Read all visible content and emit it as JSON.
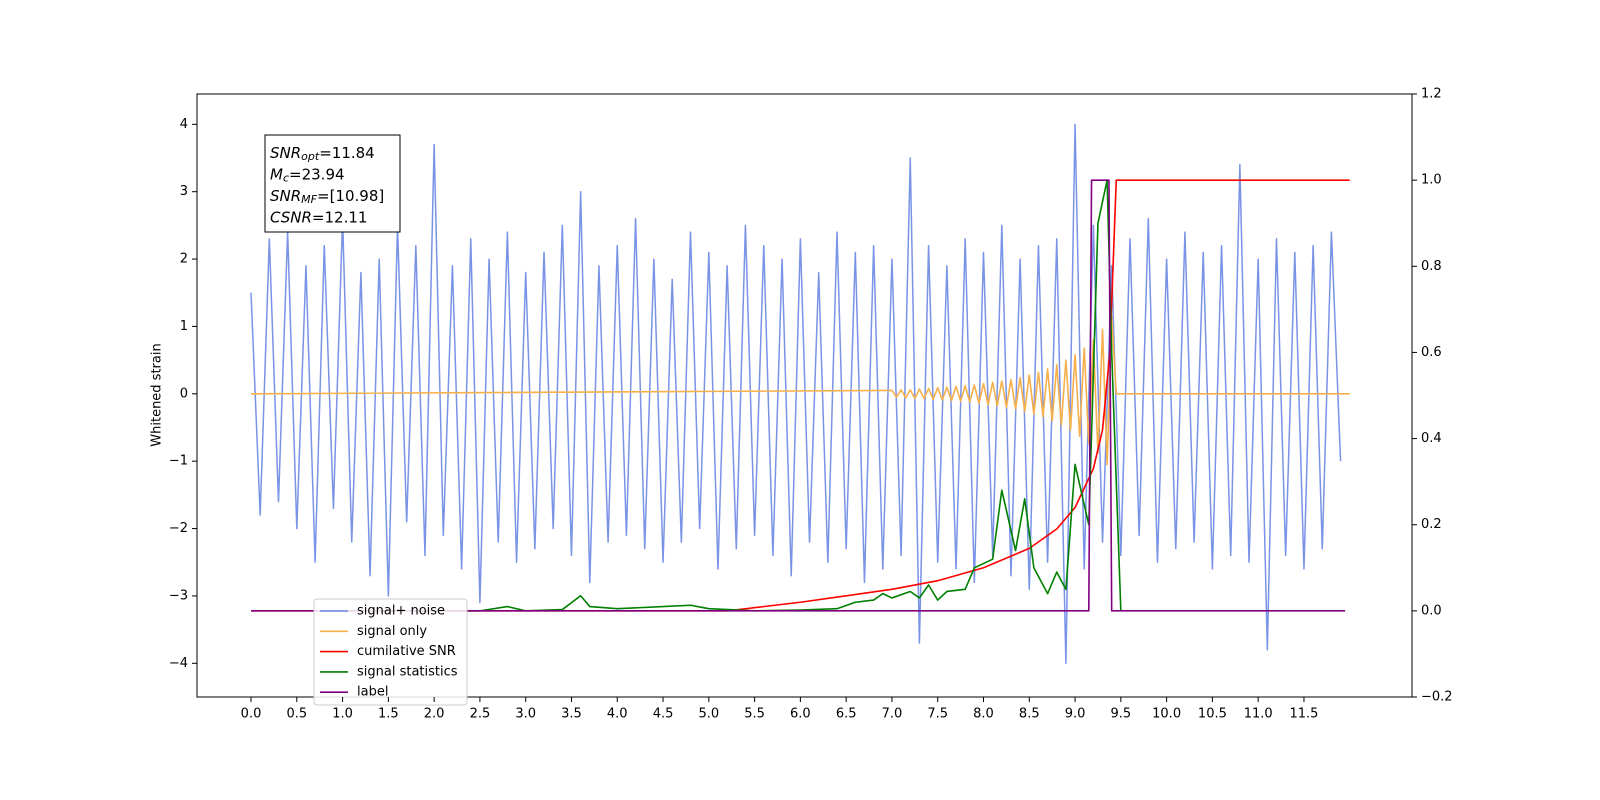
{
  "chart_data": {
    "type": "line",
    "y_label": "Whitened strain",
    "xlim": [
      -0.59,
      12.68
    ],
    "ylim": [
      -4.5,
      4.45
    ],
    "y2lim": [
      -0.2,
      1.2
    ],
    "xticks": [
      {
        "value": 0,
        "label": "0.0"
      },
      0.5,
      {
        "value": 1,
        "label": "1.0"
      },
      1.5,
      {
        "value": 2,
        "label": "2.0"
      },
      2.5,
      {
        "value": 3,
        "label": "3.0"
      },
      3.5,
      {
        "value": 4,
        "label": "4.0"
      },
      4.5,
      {
        "value": 5,
        "label": "5.0"
      },
      5.5,
      {
        "value": 6,
        "label": "6.0"
      },
      6.5,
      {
        "value": 7,
        "label": "7.0"
      },
      7.5,
      {
        "value": 8,
        "label": "8.0"
      },
      8.5,
      {
        "value": 9,
        "label": "9.0"
      },
      9.5,
      {
        "value": 10,
        "label": "10.0"
      },
      10.5,
      {
        "value": 11,
        "label": "11.0"
      },
      11.5
    ],
    "yticks": [
      {
        "value": -4,
        "label": "−4"
      },
      {
        "value": -3,
        "label": "−3"
      },
      {
        "value": -2,
        "label": "−2"
      },
      {
        "value": -1,
        "label": "−1"
      },
      0,
      1,
      2,
      3,
      4
    ],
    "y2ticks": [
      {
        "value": -0.2,
        "label": "−0.2"
      },
      {
        "value": 0,
        "label": "0.0"
      },
      0.2,
      0.4,
      0.6,
      0.8,
      {
        "value": 1,
        "label": "1.0"
      },
      1.2
    ],
    "annotations": [
      {
        "name": "SNR",
        "subscript": "opt",
        "value": "=11.84"
      },
      {
        "name": "M",
        "subscript": "c",
        "value": "=23.94"
      },
      {
        "name": "SNR",
        "subscript": "MF",
        "value": "=[10.98]"
      },
      {
        "name": "CSNR",
        "subscript": "",
        "value": "=12.11"
      }
    ],
    "legend": "lower left",
    "series": [
      {
        "name": "signal+ noise",
        "color": "#6a87e4",
        "x": [
          0,
          0.1,
          0.2,
          0.3,
          0.4,
          0.5,
          0.6,
          0.7,
          0.8,
          0.9,
          1,
          1.1,
          1.2,
          1.3,
          1.4,
          1.5,
          1.6,
          1.7,
          1.8,
          1.9,
          2,
          2.1,
          2.2,
          2.3,
          2.4,
          2.5,
          2.6,
          2.7,
          2.8,
          2.9,
          3,
          3.1,
          3.2,
          3.3,
          3.4,
          3.5,
          3.6,
          3.7,
          3.8,
          3.9,
          4,
          4.1,
          4.2,
          4.3,
          4.4,
          4.5,
          4.6,
          4.7,
          4.8,
          4.9,
          5,
          5.1,
          5.2,
          5.3,
          5.4,
          5.5,
          5.6,
          5.7,
          5.8,
          5.9,
          6,
          6.1,
          6.2,
          6.3,
          6.4,
          6.5,
          6.6,
          6.7,
          6.8,
          6.9,
          7,
          7.1,
          7.2,
          7.3,
          7.4,
          7.5,
          7.6,
          7.7,
          7.8,
          7.9,
          8,
          8.1,
          8.2,
          8.3,
          8.4,
          8.5,
          8.6,
          8.7,
          8.8,
          8.9,
          9,
          9.1,
          9.2,
          9.3,
          9.4,
          9.5,
          9.6,
          9.7,
          9.8,
          9.9,
          10,
          10.1,
          10.2,
          10.3,
          10.4,
          10.5,
          10.6,
          10.7,
          10.8,
          10.9,
          11,
          11.1,
          11.2,
          11.3,
          11.4,
          11.5,
          11.6,
          11.7,
          11.8,
          11.9
        ],
        "values": [
          1.5,
          -1.8,
          2.3,
          -1.6,
          2.4,
          -2.0,
          1.9,
          -2.5,
          2.2,
          -1.7,
          2.6,
          -2.2,
          1.8,
          -2.7,
          2.0,
          -3.0,
          2.5,
          -1.9,
          2.2,
          -2.4,
          3.7,
          -2.1,
          1.9,
          -2.6,
          2.3,
          -3.1,
          2.0,
          -2.2,
          2.4,
          -2.5,
          1.8,
          -2.3,
          2.1,
          -2.0,
          2.5,
          -2.4,
          3.0,
          -2.8,
          1.9,
          -2.2,
          2.2,
          -2.1,
          2.6,
          -2.3,
          2.0,
          -2.5,
          1.7,
          -2.2,
          2.4,
          -2.0,
          2.1,
          -2.6,
          1.9,
          -2.3,
          2.5,
          -2.1,
          2.2,
          -2.4,
          2.0,
          -2.7,
          2.3,
          -2.2,
          1.8,
          -2.5,
          2.4,
          -2.3,
          2.1,
          -2.8,
          2.2,
          -2.6,
          2.0,
          -2.4,
          3.5,
          -3.7,
          2.2,
          -2.5,
          1.9,
          -2.6,
          2.3,
          -2.8,
          2.1,
          -2.4,
          2.5,
          -2.7,
          2.0,
          -2.9,
          2.2,
          -2.5,
          2.3,
          -4.0,
          4.0,
          -2.6,
          2.5,
          -2.2,
          1.9,
          -2.4,
          2.3,
          -2.1,
          2.6,
          -2.5,
          2.0,
          -2.3,
          2.4,
          -2.2,
          2.1,
          -2.6,
          2.2,
          -2.4,
          3.4,
          -2.5,
          2.0,
          -3.8,
          2.3,
          -2.4,
          2.1,
          -2.6,
          2.2,
          -2.3,
          2.4,
          -1.0
        ]
      },
      {
        "name": "signal only",
        "color": "#f5b04c",
        "x": [
          0,
          7,
          7.05,
          7.1,
          7.15,
          7.2,
          7.25,
          7.3,
          7.35,
          7.4,
          7.45,
          7.5,
          7.55,
          7.6,
          7.65,
          7.7,
          7.75,
          7.8,
          7.85,
          7.9,
          7.95,
          8,
          8.05,
          8.1,
          8.15,
          8.2,
          8.25,
          8.3,
          8.35,
          8.4,
          8.45,
          8.5,
          8.55,
          8.6,
          8.65,
          8.7,
          8.75,
          8.8,
          8.85,
          8.9,
          8.95,
          9,
          9.05,
          9.1,
          9.15,
          9.2,
          9.25,
          9.3,
          9.35,
          9.4,
          9.45,
          12
        ],
        "values": [
          0,
          0.05,
          -0.05,
          0.06,
          -0.06,
          0.06,
          -0.07,
          0.07,
          -0.07,
          0.08,
          -0.08,
          0.09,
          -0.09,
          0.1,
          -0.1,
          0.11,
          -0.11,
          0.12,
          -0.12,
          0.13,
          -0.14,
          0.15,
          -0.16,
          0.17,
          -0.18,
          0.19,
          -0.2,
          0.21,
          -0.22,
          0.24,
          -0.26,
          0.28,
          -0.3,
          0.32,
          -0.34,
          0.37,
          -0.4,
          0.43,
          -0.46,
          0.5,
          -0.54,
          0.58,
          -0.63,
          0.68,
          -0.74,
          0.8,
          -0.88,
          0.96,
          -1.05,
          1.15,
          0,
          0
        ]
      },
      {
        "name": "cumilative SNR",
        "color": "#ff0000",
        "axis": "y2",
        "x": [
          0,
          5.2,
          6,
          6.5,
          7,
          7.5,
          8,
          8.5,
          8.8,
          9,
          9.2,
          9.3,
          9.38,
          9.45,
          12
        ],
        "values": [
          0,
          0,
          0.02,
          0.035,
          0.05,
          0.07,
          0.1,
          0.145,
          0.19,
          0.24,
          0.33,
          0.42,
          0.6,
          1,
          1
        ]
      },
      {
        "name": "signal statistics",
        "color": "#008000",
        "axis": "y2",
        "x": [
          0.7,
          2.5,
          2.8,
          3,
          3.4,
          3.6,
          3.7,
          4,
          4.5,
          4.8,
          5,
          5.5,
          6,
          6.4,
          6.6,
          6.8,
          6.9,
          7,
          7.2,
          7.3,
          7.4,
          7.5,
          7.6,
          7.8,
          7.9,
          8.1,
          8.2,
          8.35,
          8.45,
          8.55,
          8.7,
          8.8,
          8.9,
          9,
          9.15,
          9.25,
          9.35,
          9.4,
          9.5
        ],
        "values": [
          0,
          0,
          0.01,
          0,
          0.003,
          0.035,
          0.01,
          0.005,
          0.01,
          0.013,
          0.005,
          0,
          0.002,
          0.005,
          0.02,
          0.025,
          0.04,
          0.03,
          0.045,
          0.03,
          0.06,
          0.025,
          0.045,
          0.05,
          0.1,
          0.12,
          0.28,
          0.14,
          0.26,
          0.1,
          0.04,
          0.09,
          0.05,
          0.34,
          0.2,
          0.9,
          1,
          0.6,
          0
        ]
      },
      {
        "name": "label",
        "color": "#800080",
        "axis": "y2",
        "x": [
          0,
          9.15,
          9.18,
          9.37,
          9.4,
          11.95
        ],
        "values": [
          0,
          0,
          1,
          1,
          0,
          0
        ]
      }
    ]
  }
}
